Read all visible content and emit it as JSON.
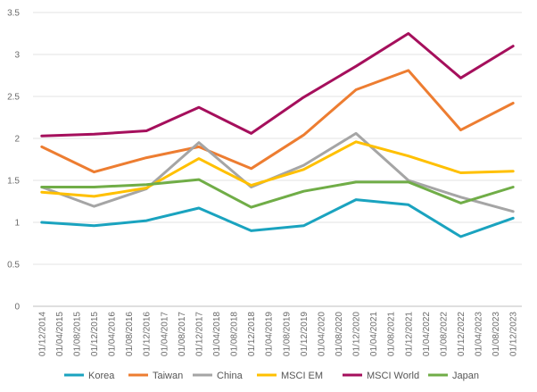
{
  "chart_data": {
    "type": "line",
    "title": "",
    "xlabel": "",
    "ylabel": "",
    "ylim": [
      0,
      3.5
    ],
    "yticks": [
      "0",
      "0.5",
      "1",
      "1.5",
      "2",
      "2.5",
      "3",
      "3.5"
    ],
    "grid": "horizontal",
    "legend_position": "bottom",
    "x_tick_labels": [
      "01/12/2014",
      "01/04/2015",
      "01/08/2015",
      "01/12/2015",
      "01/04/2016",
      "01/08/2016",
      "01/12/2016",
      "01/04/2017",
      "01/08/2017",
      "01/12/2017",
      "01/04/2018",
      "01/08/2018",
      "01/12/2018",
      "01/04/2019",
      "01/08/2019",
      "01/12/2019",
      "01/04/2020",
      "01/08/2020",
      "01/12/2020",
      "01/04/2021",
      "01/08/2021",
      "01/12/2021",
      "01/04/2022",
      "01/08/2022",
      "01/12/2022",
      "01/04/2023",
      "01/08/2023",
      "01/12/2023"
    ],
    "x": [
      "01/12/2014",
      "01/12/2015",
      "01/12/2016",
      "01/12/2017",
      "01/12/2018",
      "01/12/2019",
      "01/12/2020",
      "01/12/2021",
      "01/12/2022",
      "01/12/2023"
    ],
    "series": [
      {
        "name": "Korea",
        "color": "#1aa3bf",
        "values": [
          1.0,
          0.96,
          1.02,
          1.17,
          0.9,
          0.96,
          1.27,
          1.21,
          0.83,
          1.05
        ]
      },
      {
        "name": "Taiwan",
        "color": "#ed7d31",
        "values": [
          1.9,
          1.6,
          1.77,
          1.9,
          1.64,
          2.04,
          2.58,
          2.81,
          2.1,
          2.42
        ]
      },
      {
        "name": "China",
        "color": "#a5a5a5",
        "values": [
          1.42,
          1.19,
          1.4,
          1.95,
          1.42,
          1.68,
          2.06,
          1.5,
          1.3,
          1.13
        ]
      },
      {
        "name": "MSCI EM",
        "color": "#ffc000",
        "values": [
          1.36,
          1.31,
          1.41,
          1.76,
          1.44,
          1.63,
          1.96,
          1.79,
          1.59,
          1.61
        ]
      },
      {
        "name": "MSCI World",
        "color": "#a50f5c",
        "values": [
          2.03,
          2.05,
          2.09,
          2.37,
          2.06,
          2.49,
          2.86,
          3.25,
          2.72,
          3.1
        ]
      },
      {
        "name": "Japan",
        "color": "#70ad47",
        "values": [
          1.42,
          1.42,
          1.45,
          1.51,
          1.18,
          1.37,
          1.48,
          1.48,
          1.23,
          1.42
        ]
      }
    ]
  }
}
